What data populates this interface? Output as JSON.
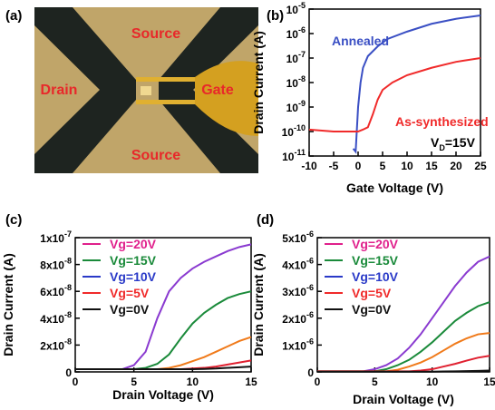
{
  "image_panel": {
    "panel_label": "(a)",
    "labels": [
      "Source",
      "Drain",
      "Gate",
      "Source"
    ]
  },
  "chart_data": [
    {
      "type": "line",
      "panel_label": "(b)",
      "xlabel": "Gate Voltage (V)",
      "ylabel": "Drain Current (A)",
      "log_y": true,
      "xlim": [
        -10,
        25
      ],
      "xticks": [
        -10,
        -5,
        0,
        5,
        10,
        15,
        20,
        25
      ],
      "ylim": [
        1e-11,
        1e-05
      ],
      "yticks": [
        {
          "value": 1e-11,
          "label": "10",
          "exponent": "-11"
        },
        {
          "value": 1e-10,
          "label": "10",
          "exponent": "-10"
        },
        {
          "value": 1e-09,
          "label": "10",
          "exponent": "-9"
        },
        {
          "value": 1e-08,
          "label": "10",
          "exponent": "-8"
        },
        {
          "value": 1e-07,
          "label": "10",
          "exponent": "-7"
        },
        {
          "value": 1e-06,
          "label": "10",
          "exponent": "-6"
        },
        {
          "value": 1e-05,
          "label": "10",
          "exponent": "-5"
        }
      ],
      "series": [
        {
          "name": "Annealed",
          "color": "#3a4fc4",
          "x": [
            -1,
            -0.5,
            0,
            0.5,
            1,
            2,
            4,
            6,
            10,
            15,
            20,
            25
          ],
          "values": [
            2e-11,
            1.5e-11,
            1e-09,
            1e-08,
            4e-08,
            1.2e-07,
            3e-07,
            6e-07,
            1.2e-06,
            2.5e-06,
            4e-06,
            5.5e-06
          ]
        },
        {
          "name": "As-synthesized",
          "color": "#f02a2a",
          "x": [
            -10,
            -5,
            0,
            1,
            2,
            3,
            4,
            5,
            7,
            10,
            15,
            20,
            25
          ],
          "values": [
            1.2e-10,
            1e-10,
            1e-10,
            1.2e-10,
            1.5e-10,
            5e-10,
            2e-09,
            5e-09,
            1e-08,
            2e-08,
            4e-08,
            7e-08,
            1e-07
          ]
        }
      ],
      "annotation": {
        "text": "V",
        "sub": "D",
        "rest": "=15V"
      }
    },
    {
      "type": "line",
      "panel_label": "(c)",
      "xlabel": "Drain Voltage (V)",
      "ylabel": "Drain Current (A)",
      "xlim": [
        0,
        15
      ],
      "xticks": [
        0,
        5,
        10,
        15
      ],
      "ylim": [
        0,
        1e-07
      ],
      "yticks": [
        0,
        {
          "value": 2e-08,
          "label": "2x10",
          "exponent": "-8"
        },
        {
          "value": 4e-08,
          "label": "4x10",
          "exponent": "-8"
        },
        {
          "value": 6e-08,
          "label": "6x10",
          "exponent": "-8"
        },
        {
          "value": 8e-08,
          "label": "8x10",
          "exponent": "-8"
        },
        {
          "value": 1e-07,
          "label": "1x10",
          "exponent": "-7"
        }
      ],
      "x": [
        0,
        1,
        2,
        3,
        4,
        5,
        6,
        7,
        8,
        9,
        10,
        11,
        12,
        13,
        14,
        15
      ],
      "series": [
        {
          "name": "Vg=20V",
          "color": "#e0208c",
          "line_color": "#8a3ad0",
          "values": [
            2e-09,
            2e-09,
            2e-09,
            2e-09,
            2e-09,
            5e-09,
            1.5e-08,
            4e-08,
            6e-08,
            7e-08,
            7.7e-08,
            8.2e-08,
            8.6e-08,
            9e-08,
            9.3e-08,
            9.5e-08
          ]
        },
        {
          "name": "Vg=15V",
          "color": "#1a8a3a",
          "line_color": "#1a8a3a",
          "values": [
            2e-09,
            2e-09,
            2e-09,
            2e-09,
            2e-09,
            2e-09,
            3e-09,
            6e-09,
            1.3e-08,
            2.5e-08,
            3.6e-08,
            4.4e-08,
            5e-08,
            5.5e-08,
            5.8e-08,
            6e-08
          ]
        },
        {
          "name": "Vg=10V",
          "color": "#2a3ac8",
          "line_color": "#f07a1a",
          "values": [
            2e-09,
            2e-09,
            2e-09,
            2e-09,
            2e-09,
            2e-09,
            2e-09,
            2e-09,
            3e-09,
            5e-09,
            8e-09,
            1.1e-08,
            1.5e-08,
            1.9e-08,
            2.3e-08,
            2.6e-08
          ]
        },
        {
          "name": "Vg=5V",
          "color": "#f02a2a",
          "line_color": "#e02030",
          "values": [
            2e-09,
            2e-09,
            2e-09,
            2e-09,
            2e-09,
            2e-09,
            2e-09,
            2e-09,
            2e-09,
            2e-09,
            2.5e-09,
            3e-09,
            4e-09,
            5.5e-09,
            7e-09,
            8.5e-09
          ]
        },
        {
          "name": "Vg=0V",
          "color": "#111111",
          "line_color": "#111111",
          "values": [
            2e-09,
            2e-09,
            2e-09,
            2e-09,
            2e-09,
            2e-09,
            2e-09,
            2e-09,
            2e-09,
            2e-09,
            2e-09,
            2.2e-09,
            2.5e-09,
            3e-09,
            3.5e-09,
            4e-09
          ]
        }
      ]
    },
    {
      "type": "line",
      "panel_label": "(d)",
      "xlabel": "Drain Voltage (V)",
      "ylabel": "Drain Current (A)",
      "xlim": [
        0,
        15
      ],
      "xticks": [
        0,
        5,
        10,
        15
      ],
      "ylim": [
        0,
        5e-06
      ],
      "yticks": [
        0,
        {
          "value": 1e-06,
          "label": "1x10",
          "exponent": "-6"
        },
        {
          "value": 2e-06,
          "label": "2x10",
          "exponent": "-6"
        },
        {
          "value": 3e-06,
          "label": "3x10",
          "exponent": "-6"
        },
        {
          "value": 4e-06,
          "label": "4x10",
          "exponent": "-6"
        },
        {
          "value": 5e-06,
          "label": "5x10",
          "exponent": "-6"
        }
      ],
      "x": [
        0,
        1,
        2,
        3,
        4,
        5,
        6,
        7,
        8,
        9,
        10,
        11,
        12,
        13,
        14,
        15
      ],
      "series": [
        {
          "name": "Vg=20V",
          "color": "#e0208c",
          "line_color": "#8a3ad0",
          "values": [
            2e-08,
            2e-08,
            2e-08,
            2e-08,
            2e-08,
            1e-07,
            2.5e-07,
            5e-07,
            9e-07,
            1.4e-06,
            2e-06,
            2.6e-06,
            3.2e-06,
            3.7e-06,
            4.1e-06,
            4.3e-06
          ]
        },
        {
          "name": "Vg=15V",
          "color": "#1a8a3a",
          "line_color": "#1a8a3a",
          "values": [
            2e-08,
            2e-08,
            2e-08,
            2e-08,
            2e-08,
            2e-08,
            1e-07,
            2.5e-07,
            4.5e-07,
            7.5e-07,
            1.1e-06,
            1.5e-06,
            1.9e-06,
            2.2e-06,
            2.45e-06,
            2.6e-06
          ]
        },
        {
          "name": "Vg=10V",
          "color": "#2a3ac8",
          "line_color": "#f07a1a",
          "values": [
            2e-08,
            2e-08,
            2e-08,
            2e-08,
            2e-08,
            2e-08,
            2e-08,
            8e-08,
            2e-07,
            3.5e-07,
            5.5e-07,
            8e-07,
            1.05e-06,
            1.25e-06,
            1.4e-06,
            1.45e-06
          ]
        },
        {
          "name": "Vg=5V",
          "color": "#f02a2a",
          "line_color": "#e02030",
          "values": [
            2e-08,
            2e-08,
            2e-08,
            2e-08,
            2e-08,
            2e-08,
            2e-08,
            2e-08,
            2e-08,
            5e-08,
            1e-07,
            2e-07,
            3e-07,
            4.2e-07,
            5.3e-07,
            6e-07
          ]
        },
        {
          "name": "Vg=0V",
          "color": "#111111",
          "line_color": "#111111",
          "values": [
            1e-08,
            1e-08,
            1e-08,
            1e-08,
            1e-08,
            1e-08,
            1e-08,
            1e-08,
            1e-08,
            1e-08,
            1e-08,
            1.5e-08,
            2e-08,
            3e-08,
            4e-08,
            5e-08
          ]
        }
      ]
    }
  ]
}
